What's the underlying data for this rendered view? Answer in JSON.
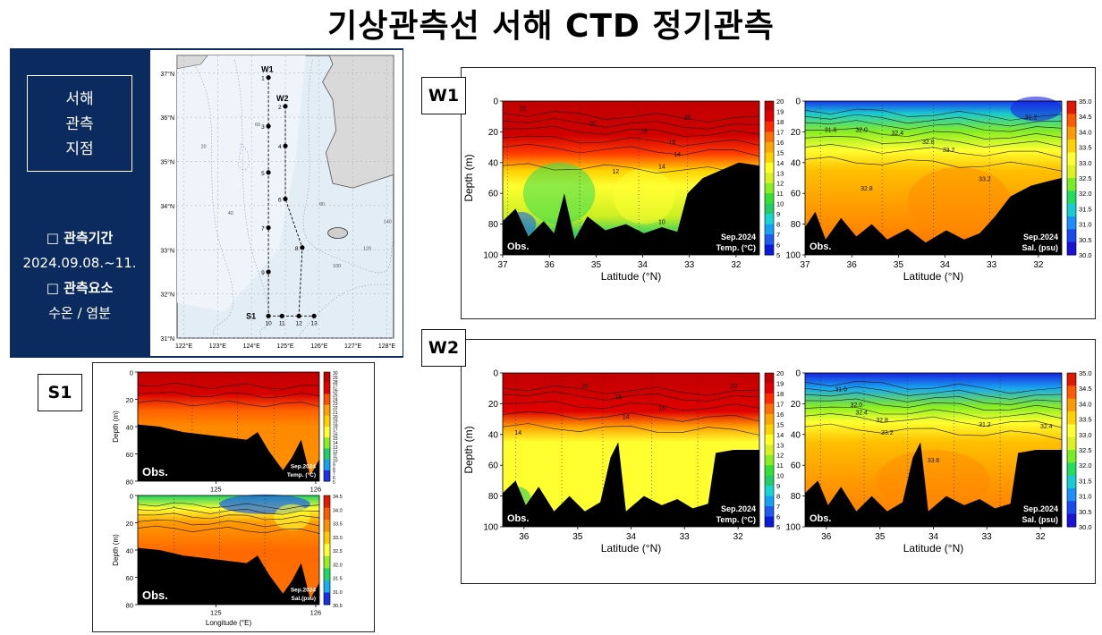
{
  "page": {
    "title": "기상관측선 서해 CTD 정기관측"
  },
  "left_panel": {
    "region_lines": [
      "서해",
      "관측",
      "지점"
    ],
    "period_label": "□ 관측기간",
    "period_value": "2024.09.08.~11.",
    "elements_label": "□ 관측요소",
    "elements_value": "수온 / 염분"
  },
  "map": {
    "lon_ticks": [
      "122°E",
      "123°E",
      "124°E",
      "125°E",
      "126°E",
      "127°E",
      "128°E"
    ],
    "lat_ticks": [
      "37°N",
      "36°N",
      "35°N",
      "34°N",
      "33°N",
      "32°N",
      "31°N"
    ],
    "stations": [
      {
        "id": "1",
        "lon": 124.5,
        "lat": 36.9
      },
      {
        "id": "2",
        "lon": 125.0,
        "lat": 36.25
      },
      {
        "id": "3",
        "lon": 124.5,
        "lat": 35.8
      },
      {
        "id": "4",
        "lon": 125.0,
        "lat": 35.35
      },
      {
        "id": "5",
        "lon": 124.5,
        "lat": 34.75
      },
      {
        "id": "6",
        "lon": 125.0,
        "lat": 34.15
      },
      {
        "id": "7",
        "lon": 124.5,
        "lat": 33.5
      },
      {
        "id": "8",
        "lon": 125.5,
        "lat": 33.05
      },
      {
        "id": "9",
        "lon": 124.5,
        "lat": 32.5
      },
      {
        "id": "10",
        "lon": 124.5,
        "lat": 31.5
      },
      {
        "id": "11",
        "lon": 124.9,
        "lat": 31.5
      },
      {
        "id": "12",
        "lon": 125.4,
        "lat": 31.5
      },
      {
        "id": "13",
        "lon": 125.85,
        "lat": 31.5
      }
    ],
    "line_labels": {
      "w1": "W1",
      "w2": "W2",
      "s1": "S1"
    },
    "depth_labels": [
      "20",
      "40",
      "60",
      "80",
      "100",
      "120",
      "140"
    ]
  },
  "panels": {
    "w1": {
      "tag": "W1"
    },
    "w2": {
      "tag": "W2"
    },
    "s1": {
      "tag": "S1"
    }
  },
  "chart_data": [
    {
      "type": "heatmap",
      "id": "w1-temp",
      "xlabel": "Latitude (°N)",
      "ylabel": "Depth (m)",
      "x_ticks": [
        "37",
        "36",
        "35",
        "34",
        "33",
        "32"
      ],
      "y_ticks": [
        "0",
        "20",
        "40",
        "60",
        "80",
        "100"
      ],
      "xlim": [
        37,
        31.6
      ],
      "ylim": [
        0,
        100
      ],
      "obs_label": "Obs.",
      "date_label": "Sep.2024",
      "var_label": "Temp. (°C)",
      "colorbar_ticks": [
        "20",
        "19",
        "18",
        "17",
        "16",
        "15",
        "14",
        "13",
        "12",
        "11",
        "10",
        "9",
        "8",
        "7",
        "6",
        "5"
      ],
      "contour_labels": [
        "22",
        "20",
        "18",
        "16",
        "14",
        "12",
        "10",
        "14",
        "20"
      ],
      "accent_colors": {
        "warm": "#c00000",
        "cool": "#1e1ed6"
      }
    },
    {
      "type": "heatmap",
      "id": "w1-sal",
      "xlabel": "Latitude (°N)",
      "x_ticks": [
        "37",
        "36",
        "35",
        "34",
        "33",
        "32"
      ],
      "y_ticks": [
        "0",
        "20",
        "40",
        "60",
        "80",
        "100"
      ],
      "xlim": [
        37,
        31.6
      ],
      "ylim": [
        0,
        100
      ],
      "obs_label": "Obs.",
      "date_label": "Sep.2024",
      "var_label": "Sal. (psu)",
      "colorbar_ticks": [
        "35.0",
        "34.5",
        "34.0",
        "33.5",
        "33.0",
        "32.5",
        "32.0",
        "31.5",
        "31.0",
        "30.5",
        "30.0"
      ],
      "contour_labels": [
        "31.6",
        "32.0",
        "32.4",
        "32.8",
        "33.2",
        "33.6",
        "31.2",
        "32.8",
        "33.2"
      ]
    },
    {
      "type": "heatmap",
      "id": "w2-temp",
      "xlabel": "Latitude (°N)",
      "ylabel": "Depth (m)",
      "x_ticks": [
        "36",
        "35",
        "34",
        "33",
        "32"
      ],
      "y_ticks": [
        "0",
        "20",
        "40",
        "60",
        "80",
        "100"
      ],
      "xlim": [
        36.4,
        31.6
      ],
      "ylim": [
        0,
        100
      ],
      "obs_label": "Obs.",
      "date_label": "Sep.2024",
      "var_label": "Temp. (°C)",
      "colorbar_ticks": [
        "20",
        "19",
        "18",
        "17",
        "16",
        "15",
        "14",
        "13",
        "12",
        "11",
        "10",
        "9",
        "8",
        "7",
        "6",
        "5"
      ],
      "contour_labels": [
        "20",
        "18",
        "16",
        "14",
        "14",
        "12",
        "20"
      ]
    },
    {
      "type": "heatmap",
      "id": "w2-sal",
      "xlabel": "Latitude (°N)",
      "x_ticks": [
        "36",
        "35",
        "34",
        "33",
        "32"
      ],
      "y_ticks": [
        "0",
        "20",
        "40",
        "60",
        "80",
        "100"
      ],
      "xlim": [
        36.4,
        31.6
      ],
      "ylim": [
        0,
        100
      ],
      "obs_label": "Obs.",
      "date_label": "Sep.2024",
      "var_label": "Sal. (psu)",
      "colorbar_ticks": [
        "35.0",
        "34.5",
        "34.0",
        "33.5",
        "33.0",
        "32.5",
        "32.0",
        "31.5",
        "31.0",
        "30.5",
        "30.0"
      ],
      "contour_labels": [
        "31.6",
        "32.0",
        "32.4",
        "32.8",
        "33.2",
        "33.6",
        "31.2",
        "32.4"
      ]
    },
    {
      "type": "heatmap",
      "id": "s1-temp",
      "ylabel": "Depth (m)",
      "x_ticks": [
        "125",
        "126"
      ],
      "y_ticks": [
        "0",
        "20",
        "40",
        "60",
        "80"
      ],
      "ylim": [
        0,
        80
      ],
      "obs_label": "Obs.",
      "date_label": "Sep.2024",
      "var_label": "Temp. (°C)",
      "colorbar_ticks": [
        "30",
        "29",
        "28",
        "27",
        "26",
        "25",
        "24",
        "23",
        "22",
        "21",
        "20",
        "19",
        "18",
        "17",
        "16",
        "15",
        "14",
        "13",
        "12",
        "11",
        "10",
        "9",
        "8",
        "7",
        "6",
        "5"
      ]
    },
    {
      "type": "heatmap",
      "id": "s1-sal",
      "xlabel": "Longitude (°E)",
      "ylabel": "Depth (m)",
      "x_ticks": [
        "125",
        "126"
      ],
      "y_ticks": [
        "0",
        "20",
        "40",
        "60",
        "80"
      ],
      "ylim": [
        0,
        80
      ],
      "obs_label": "Obs.",
      "date_label": "Sep.2024",
      "var_label": "Sal.(psu)",
      "colorbar_ticks": [
        "34.5",
        "34.0",
        "33.5",
        "33.0",
        "32.5",
        "32.0",
        "31.5",
        "31.0",
        "30.5"
      ]
    }
  ]
}
